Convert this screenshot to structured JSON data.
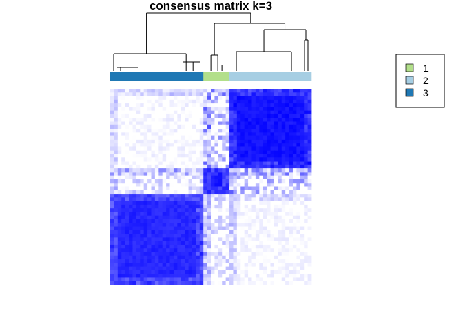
{
  "chart_data": {
    "type": "heatmap",
    "title": "consensus matrix k=3",
    "legend": {
      "position": "right",
      "entries": [
        {
          "label": "1",
          "color": "#B2DF8A"
        },
        {
          "label": "2",
          "color": "#A6CEE3"
        },
        {
          "label": "3",
          "color": "#1F78B4"
        }
      ]
    },
    "clusters": [
      {
        "label": "3",
        "size": 25
      },
      {
        "label": "1",
        "size": 7
      },
      {
        "label": "2",
        "size": 22
      }
    ],
    "value_range": [
      0,
      1
    ],
    "colors": {
      "low": "#FFFFFF",
      "high": "#0000FF"
    },
    "block_consensus": [
      [
        0.85,
        0.15,
        0.05
      ],
      [
        0.15,
        0.9,
        0.25
      ],
      [
        0.05,
        0.25,
        0.93
      ]
    ],
    "dendrogram": "hierarchical clustering of samples shown above the matrix"
  }
}
